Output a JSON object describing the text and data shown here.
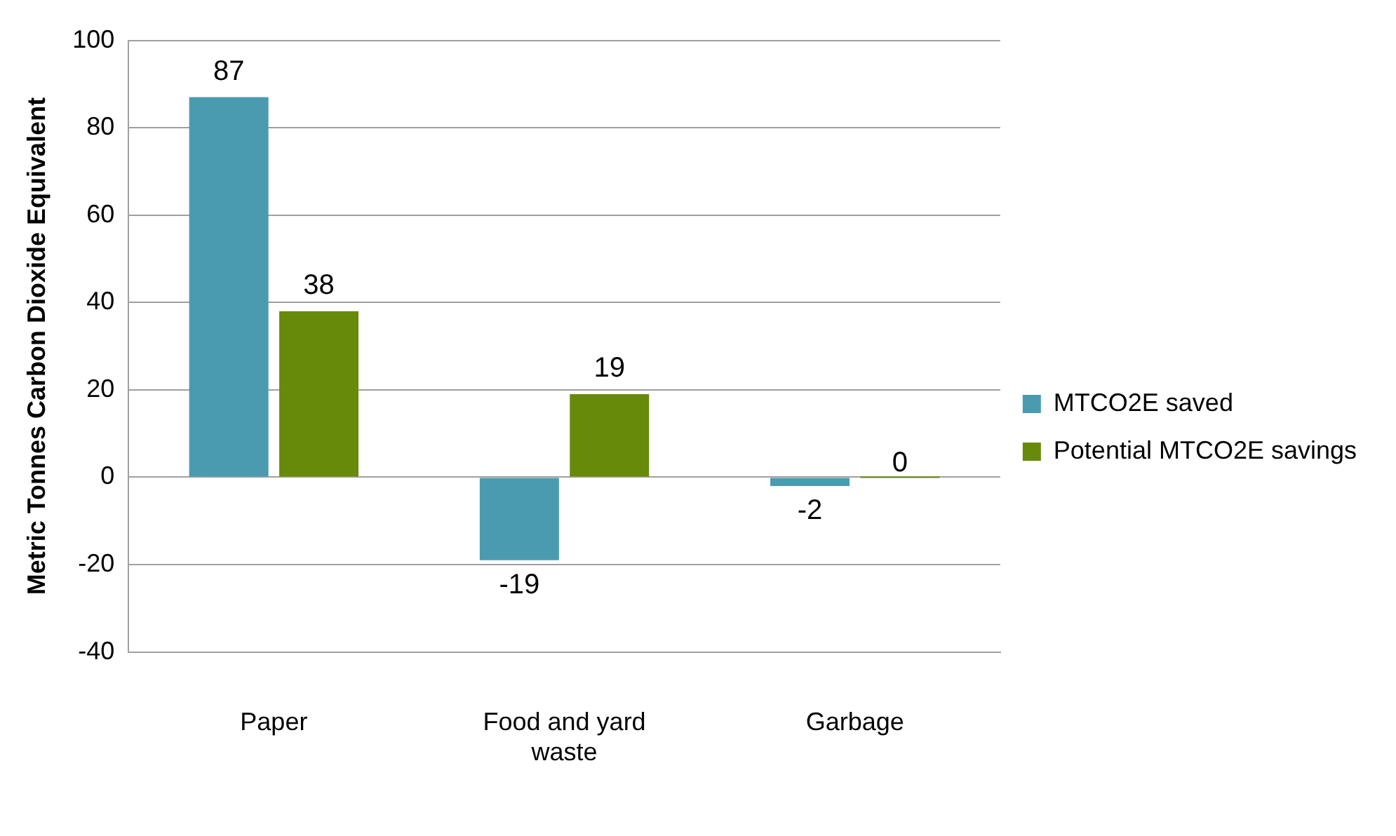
{
  "chart_data": {
    "type": "bar",
    "ylabel": "Metric Tonnes Carbon Dioxide Equivalent",
    "categories": [
      "Paper",
      "Food and yard waste",
      "Garbage"
    ],
    "series": [
      {
        "name": "MTCO2E saved",
        "color": "#4a9bb0",
        "values": [
          87,
          -19,
          -2
        ]
      },
      {
        "name": "Potential MTCO2E savings",
        "color": "#688a0a",
        "values": [
          38,
          19,
          0
        ]
      }
    ],
    "ylim": [
      -40,
      100
    ],
    "yticks": [
      -40,
      -20,
      0,
      20,
      40,
      60,
      80,
      100
    ],
    "grid": "y",
    "legend": "right",
    "data_labels": true
  }
}
